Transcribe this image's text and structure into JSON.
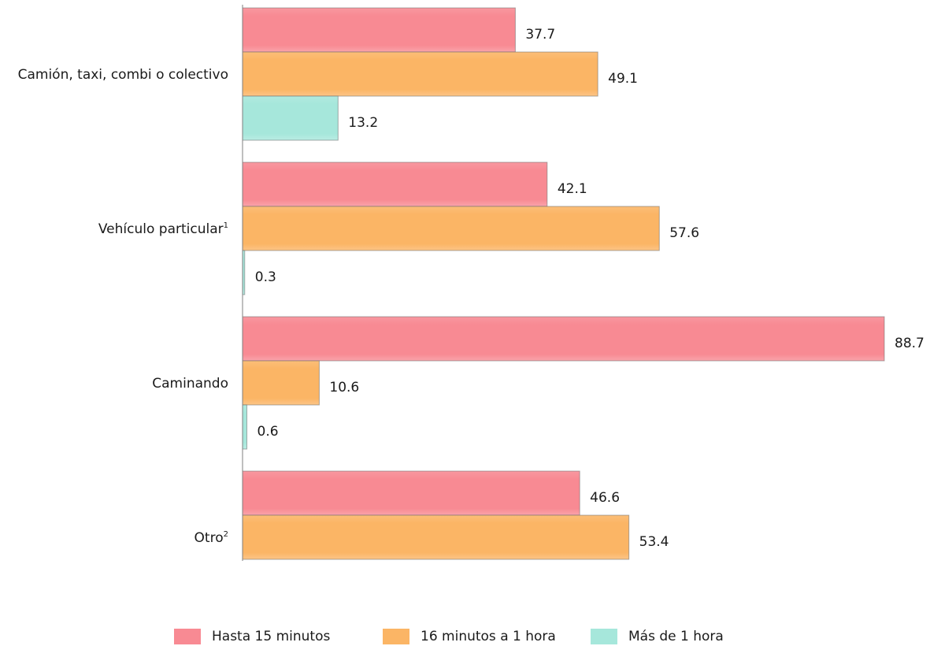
{
  "chart_data": {
    "type": "bar",
    "orientation": "horizontal",
    "title": "",
    "xlabel": "",
    "ylabel": "",
    "xlim": [
      0,
      88.7
    ],
    "grid": false,
    "legend_position": "bottom",
    "categories": [
      {
        "label": "Camión, taxi, combi o colectivo",
        "sup": ""
      },
      {
        "label": "Vehículo particular",
        "sup": "1"
      },
      {
        "label": "Caminando",
        "sup": ""
      },
      {
        "label": "Otro",
        "sup": "2"
      }
    ],
    "series": [
      {
        "name": "Hasta 15 minutos",
        "color": "#f88a93",
        "values": [
          37.7,
          42.1,
          88.7,
          46.6
        ]
      },
      {
        "name": "16 minutos a 1 hora",
        "color": "#fbb565",
        "values": [
          49.1,
          57.6,
          10.6,
          53.4
        ]
      },
      {
        "name": "Más de 1 hora",
        "color": "#a6e7db",
        "values": [
          13.2,
          0.3,
          0.6,
          null
        ]
      }
    ]
  }
}
